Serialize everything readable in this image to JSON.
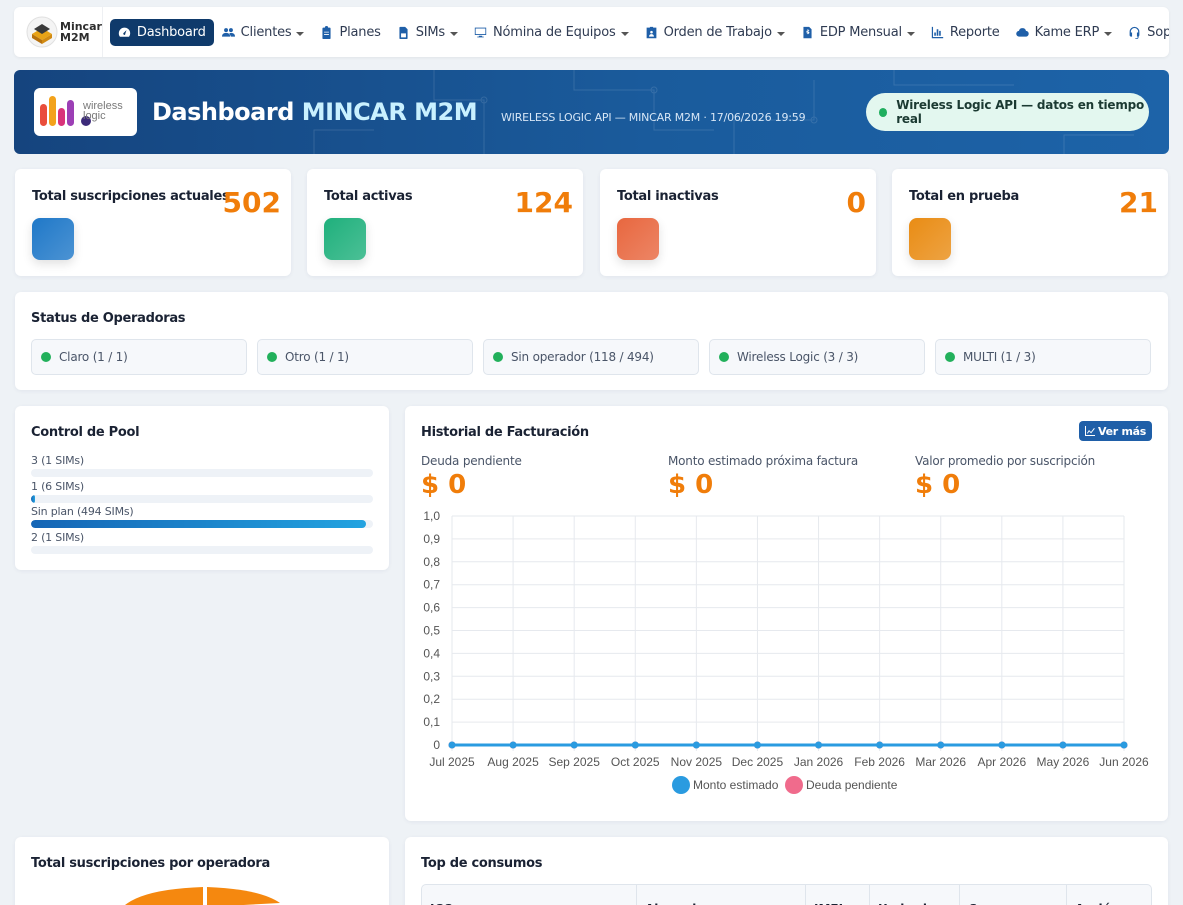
{
  "brand": {
    "name_line1": "Mincar",
    "name_line2": "M2M"
  },
  "nav": {
    "items": [
      {
        "label": "Dashboard",
        "icon": "gauge-icon",
        "caret": false,
        "active": true
      },
      {
        "label": "Clientes",
        "icon": "users-icon",
        "caret": true,
        "active": false
      },
      {
        "label": "Planes",
        "icon": "clipboard-icon",
        "caret": false,
        "active": false
      },
      {
        "label": "SIMs",
        "icon": "sim-card-icon",
        "caret": true,
        "active": false
      },
      {
        "label": "Nómina de Equipos",
        "icon": "monitor-icon",
        "caret": true,
        "active": false
      },
      {
        "label": "Orden de Trabajo",
        "icon": "id-card-icon",
        "caret": true,
        "active": false
      },
      {
        "label": "EDP Mensual",
        "icon": "invoice-icon",
        "caret": true,
        "active": false
      },
      {
        "label": "Reporte",
        "icon": "bar-chart-icon",
        "caret": false,
        "active": false
      },
      {
        "label": "Kame ERP",
        "icon": "cloud-icon",
        "caret": true,
        "active": false
      },
      {
        "label": "Soporte",
        "icon": "headset-icon",
        "caret": false,
        "active": false
      }
    ]
  },
  "hero": {
    "title": "Dashboard",
    "title_accent": "MINCAR M2M",
    "subtitle": "WIRELESS LOGIC API — MINCAR M2M · 17/06/2026 19:59",
    "status_pill": "Wireless Logic API — datos en tiempo real",
    "logo_text_1": "wireless",
    "logo_text_2": "logic"
  },
  "stats": [
    {
      "label": "Total suscripciones actuales",
      "value": "502",
      "color": "#1f78c8"
    },
    {
      "label": "Total activas",
      "value": "124",
      "color": "#1fb07c"
    },
    {
      "label": "Total inactivas",
      "value": "0",
      "color": "#e8673f"
    },
    {
      "label": "Total en prueba",
      "value": "21",
      "color": "#e98c14"
    }
  ],
  "operators": {
    "title": "Status de Operadoras",
    "items": [
      {
        "label": "Claro (1 / 1)"
      },
      {
        "label": "Otro (1 / 1)"
      },
      {
        "label": "Sin operador (118 / 494)"
      },
      {
        "label": "Wireless Logic (3 / 3)"
      },
      {
        "label": "MULTI (1 / 3)"
      }
    ]
  },
  "pool": {
    "title": "Control de Pool",
    "rows": [
      {
        "label": "3 (1 SIMs)",
        "fill": 0.0
      },
      {
        "label": "1 (6 SIMs)",
        "fill": 0.01
      },
      {
        "label": "Sin plan (494 SIMs)",
        "fill": 0.98
      },
      {
        "label": "2 (1 SIMs)",
        "fill": 0.0
      }
    ]
  },
  "billing": {
    "title": "Historial de Facturación",
    "ver_mas": "Ver más",
    "kpis": [
      {
        "label": "Deuda pendiente",
        "value": "$ 0"
      },
      {
        "label": "Monto estimado próxima factura",
        "value": "$ 0"
      },
      {
        "label": "Valor promedio por suscripción",
        "value": "$ 0"
      }
    ]
  },
  "chart_data": {
    "type": "line",
    "x": [
      "Jul 2025",
      "Aug 2025",
      "Sep 2025",
      "Oct 2025",
      "Nov 2025",
      "Dec 2025",
      "Jan 2026",
      "Feb 2026",
      "Mar 2026",
      "Apr 2026",
      "May 2026",
      "Jun 2026"
    ],
    "y_ticks": [
      "0",
      "0,1",
      "0,2",
      "0,3",
      "0,4",
      "0,5",
      "0,6",
      "0,7",
      "0,8",
      "0,9",
      "1,0"
    ],
    "ylim": [
      0,
      1
    ],
    "grid": true,
    "legend_position": "bottom",
    "series": [
      {
        "name": "Monto estimado",
        "color": "#2a9be0",
        "values": [
          0,
          0,
          0,
          0,
          0,
          0,
          0,
          0,
          0,
          0,
          0,
          0
        ]
      },
      {
        "name": "Deuda pendiente",
        "color": "#f06b8c",
        "values": [
          0,
          0,
          0,
          0,
          0,
          0,
          0,
          0,
          0,
          0,
          0,
          0
        ]
      }
    ]
  },
  "subs_by_operator": {
    "title": "Total suscripciones por operadora"
  },
  "top_consumos": {
    "title": "Top de consumos",
    "columns": [
      "ICC",
      "Abonado",
      "IMEI",
      "Umbral",
      "Consumo",
      "Acción"
    ]
  }
}
